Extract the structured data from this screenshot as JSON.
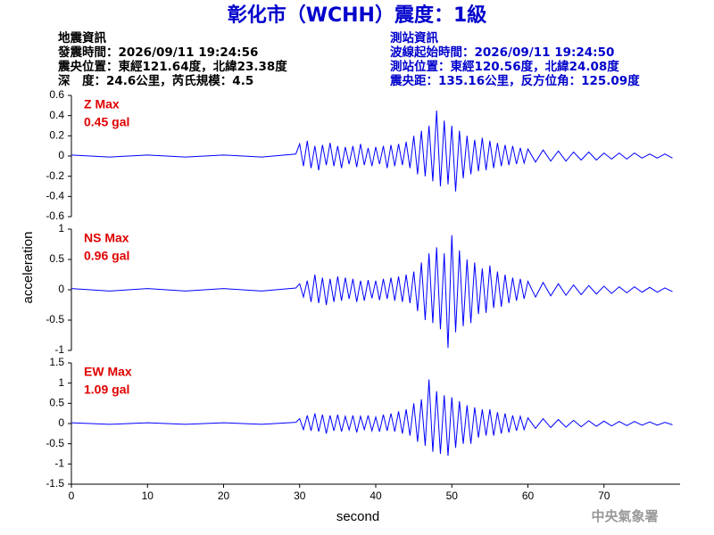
{
  "header": {
    "title": "彰化市（WCHH）震度：1級",
    "left": [
      "地震資訊",
      "發震時間：2026/09/11 19:24:56",
      "震央位置：東經121.64度，北緯23.38度",
      "深　度：24.6公里，芮氏規模：4.5"
    ],
    "right": [
      "測站資訊",
      "波線起始時間：2026/09/11 19:24:50",
      "測站位置：東經120.56度，北緯24.08度",
      "震央距：135.16公里，反方位角：125.09度"
    ]
  },
  "footer": "中央氣象署",
  "chart_data": [
    {
      "type": "line",
      "label": "Z Max",
      "annotation": "0.45 gal",
      "xlim": [
        0,
        80
      ],
      "ylim": [
        -0.6,
        0.6
      ],
      "yticks": [
        -0.6,
        -0.4,
        -0.2,
        0,
        0.2,
        0.4,
        0.6
      ],
      "x": [
        0,
        5,
        10,
        15,
        20,
        25,
        29.5,
        30,
        30.5,
        31,
        31.5,
        32,
        32.5,
        33,
        33.5,
        34,
        34.5,
        35,
        35.5,
        36,
        36.5,
        37,
        37.5,
        38,
        38.5,
        39,
        39.5,
        40,
        40.5,
        41,
        41.5,
        42,
        42.5,
        43,
        43.5,
        44,
        44.5,
        45,
        45.5,
        46,
        46.5,
        47,
        47.5,
        48,
        48.5,
        49,
        49.5,
        50,
        50.5,
        51,
        51.5,
        52,
        52.5,
        53,
        53.5,
        54,
        54.5,
        55,
        55.5,
        56,
        56.5,
        57,
        57.5,
        58,
        58.5,
        59,
        59.5,
        60,
        61,
        62,
        63,
        64,
        65,
        66,
        67,
        68,
        69,
        70,
        71,
        72,
        73,
        74,
        75,
        76,
        77,
        78,
        79
      ],
      "series": [
        {
          "color": "#0000ff",
          "values": [
            0.01,
            -0.01,
            0.01,
            -0.01,
            0.01,
            -0.01,
            0.02,
            0.12,
            -0.1,
            0.15,
            -0.12,
            0.1,
            -0.14,
            0.11,
            -0.09,
            0.13,
            -0.1,
            0.1,
            -0.12,
            0.09,
            -0.08,
            0.1,
            -0.11,
            0.12,
            -0.09,
            0.08,
            -0.1,
            0.09,
            -0.08,
            0.1,
            -0.12,
            0.11,
            -0.1,
            0.12,
            -0.09,
            0.14,
            -0.12,
            0.2,
            -0.18,
            0.25,
            -0.2,
            0.3,
            -0.25,
            0.45,
            -0.3,
            0.35,
            -0.28,
            0.3,
            -0.35,
            0.25,
            -0.22,
            0.2,
            -0.18,
            0.16,
            -0.15,
            0.18,
            -0.14,
            0.15,
            -0.12,
            0.13,
            -0.1,
            0.11,
            -0.09,
            0.1,
            -0.08,
            0.08,
            -0.07,
            0.07,
            -0.06,
            0.06,
            -0.05,
            0.05,
            -0.05,
            0.04,
            -0.04,
            0.04,
            -0.04,
            0.03,
            -0.03,
            0.03,
            -0.03,
            0.03,
            -0.02,
            0.02,
            -0.02,
            0.02,
            -0.02
          ]
        }
      ]
    },
    {
      "type": "line",
      "label": "NS Max",
      "annotation": "0.96 gal",
      "ylabel": "acceleration",
      "xlim": [
        0,
        80
      ],
      "ylim": [
        -1,
        1
      ],
      "yticks": [
        -1,
        -0.5,
        0,
        0.5,
        1
      ],
      "x": [
        0,
        5,
        10,
        15,
        20,
        25,
        29.5,
        30,
        30.5,
        31,
        31.5,
        32,
        32.5,
        33,
        33.5,
        34,
        34.5,
        35,
        35.5,
        36,
        36.5,
        37,
        37.5,
        38,
        38.5,
        39,
        39.5,
        40,
        40.5,
        41,
        41.5,
        42,
        42.5,
        43,
        43.5,
        44,
        44.5,
        45,
        45.5,
        46,
        46.5,
        47,
        47.5,
        48,
        48.5,
        49,
        49.5,
        50,
        50.5,
        51,
        51.5,
        52,
        52.5,
        53,
        53.5,
        54,
        54.5,
        55,
        55.5,
        56,
        56.5,
        57,
        57.5,
        58,
        58.5,
        59,
        59.5,
        60,
        61,
        62,
        63,
        64,
        65,
        66,
        67,
        68,
        69,
        70,
        71,
        72,
        73,
        74,
        75,
        76,
        77,
        78,
        79
      ],
      "series": [
        {
          "color": "#0000ff",
          "values": [
            0.02,
            -0.02,
            0.02,
            -0.02,
            0.02,
            -0.02,
            0.03,
            0.1,
            -0.12,
            0.15,
            -0.2,
            0.25,
            -0.22,
            0.2,
            -0.25,
            0.18,
            -0.2,
            0.22,
            -0.18,
            0.2,
            -0.15,
            0.18,
            -0.2,
            0.15,
            -0.18,
            0.16,
            -0.14,
            0.15,
            -0.17,
            0.18,
            -0.15,
            0.2,
            -0.18,
            0.22,
            -0.2,
            0.25,
            -0.22,
            0.3,
            -0.35,
            0.45,
            -0.5,
            0.6,
            -0.55,
            0.7,
            -0.65,
            0.6,
            -0.96,
            0.9,
            -0.7,
            0.65,
            -0.6,
            0.5,
            -0.55,
            0.45,
            -0.4,
            0.35,
            -0.38,
            0.4,
            -0.3,
            0.3,
            -0.28,
            0.25,
            -0.22,
            0.2,
            -0.18,
            0.18,
            -0.15,
            0.14,
            -0.12,
            0.12,
            -0.1,
            0.1,
            -0.09,
            0.08,
            -0.08,
            0.07,
            -0.07,
            0.06,
            -0.06,
            0.05,
            -0.05,
            0.05,
            -0.04,
            0.04,
            -0.04,
            0.03,
            -0.03
          ]
        }
      ]
    },
    {
      "type": "line",
      "label": "EW Max",
      "annotation": "1.09 gal",
      "xlabel": "second",
      "xlim": [
        0,
        80
      ],
      "ylim": [
        -1.5,
        1.5
      ],
      "yticks": [
        -1.5,
        -1,
        -0.5,
        0,
        0.5,
        1,
        1.5
      ],
      "xticks": [
        0,
        10,
        20,
        30,
        40,
        50,
        60,
        70
      ],
      "x": [
        0,
        5,
        10,
        15,
        20,
        25,
        29.5,
        30,
        30.5,
        31,
        31.5,
        32,
        32.5,
        33,
        33.5,
        34,
        34.5,
        35,
        35.5,
        36,
        36.5,
        37,
        37.5,
        38,
        38.5,
        39,
        39.5,
        40,
        40.5,
        41,
        41.5,
        42,
        42.5,
        43,
        43.5,
        44,
        44.5,
        45,
        45.5,
        46,
        46.5,
        47,
        47.5,
        48,
        48.5,
        49,
        49.5,
        50,
        50.5,
        51,
        51.5,
        52,
        52.5,
        53,
        53.5,
        54,
        54.5,
        55,
        55.5,
        56,
        56.5,
        57,
        57.5,
        58,
        58.5,
        59,
        59.5,
        60,
        61,
        62,
        63,
        64,
        65,
        66,
        67,
        68,
        69,
        70,
        71,
        72,
        73,
        74,
        75,
        76,
        77,
        78,
        79
      ],
      "series": [
        {
          "color": "#0000ff",
          "values": [
            0.02,
            -0.02,
            0.02,
            -0.02,
            0.02,
            -0.02,
            0.03,
            0.12,
            -0.15,
            0.2,
            -0.18,
            0.25,
            -0.2,
            0.22,
            -0.25,
            0.2,
            -0.18,
            0.22,
            -0.2,
            0.18,
            -0.16,
            0.2,
            -0.22,
            0.18,
            -0.15,
            0.2,
            -0.18,
            0.16,
            -0.2,
            0.22,
            -0.18,
            0.25,
            -0.2,
            0.3,
            -0.25,
            0.35,
            -0.3,
            0.5,
            -0.45,
            0.6,
            -0.55,
            1.09,
            -0.7,
            0.8,
            -0.75,
            0.7,
            -0.8,
            0.65,
            -0.6,
            0.55,
            -0.5,
            0.45,
            -0.5,
            0.4,
            -0.35,
            0.35,
            -0.3,
            0.35,
            -0.3,
            0.28,
            -0.25,
            0.25,
            -0.22,
            0.2,
            -0.18,
            0.18,
            -0.15,
            0.14,
            -0.12,
            0.12,
            -0.1,
            0.1,
            -0.09,
            0.08,
            -0.08,
            0.07,
            -0.07,
            0.06,
            -0.06,
            0.05,
            -0.05,
            0.05,
            -0.04,
            0.04,
            -0.04,
            0.03,
            -0.03
          ]
        }
      ]
    }
  ]
}
